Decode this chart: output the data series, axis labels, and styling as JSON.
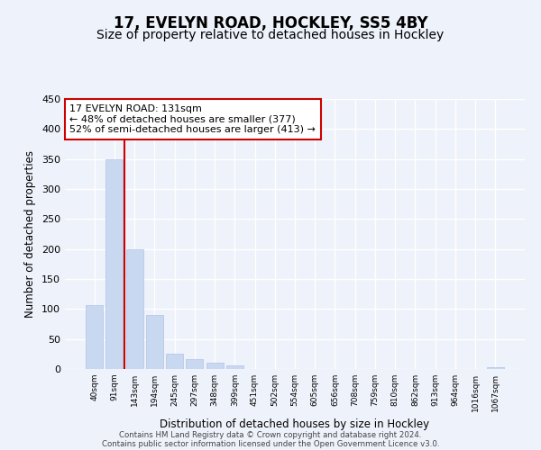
{
  "title": "17, EVELYN ROAD, HOCKLEY, SS5 4BY",
  "subtitle": "Size of property relative to detached houses in Hockley",
  "xlabel": "Distribution of detached houses by size in Hockley",
  "ylabel": "Number of detached properties",
  "bin_labels": [
    "40sqm",
    "91sqm",
    "143sqm",
    "194sqm",
    "245sqm",
    "297sqm",
    "348sqm",
    "399sqm",
    "451sqm",
    "502sqm",
    "554sqm",
    "605sqm",
    "656sqm",
    "708sqm",
    "759sqm",
    "810sqm",
    "862sqm",
    "913sqm",
    "964sqm",
    "1016sqm",
    "1067sqm"
  ],
  "bar_values": [
    107,
    350,
    200,
    90,
    25,
    17,
    10,
    6,
    0,
    0,
    0,
    0,
    0,
    0,
    0,
    0,
    0,
    0,
    0,
    0,
    3
  ],
  "bar_color": "#c8d8f0",
  "bar_edge_color": "#b0c4e8",
  "property_line_label": "17 EVELYN ROAD: 131sqm",
  "annotation_line1": "← 48% of detached houses are smaller (377)",
  "annotation_line2": "52% of semi-detached houses are larger (413) →",
  "annotation_box_color": "white",
  "annotation_box_edge_color": "#cc0000",
  "vline_color": "#cc0000",
  "ylim": [
    0,
    450
  ],
  "footer1": "Contains HM Land Registry data © Crown copyright and database right 2024.",
  "footer2": "Contains public sector information licensed under the Open Government Licence v3.0.",
  "background_color": "#eef2fa",
  "grid_color": "white",
  "title_fontsize": 12,
  "subtitle_fontsize": 10
}
